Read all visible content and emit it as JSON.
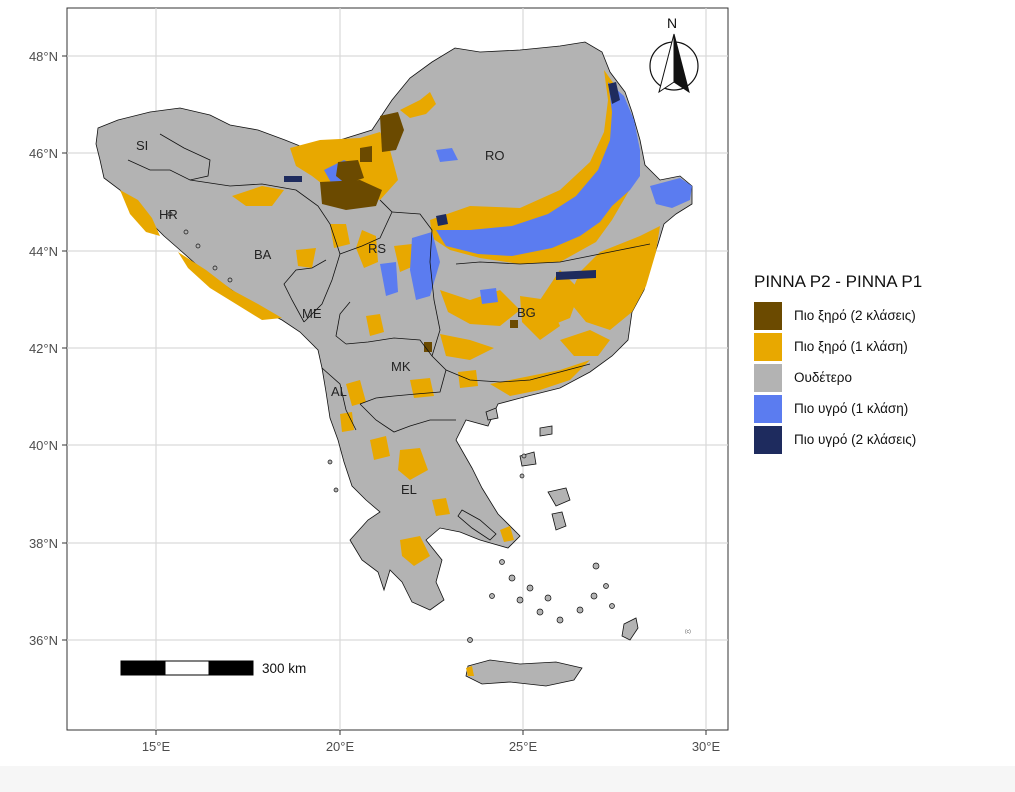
{
  "map": {
    "x_ticks": [
      "15°E",
      "20°E",
      "25°E",
      "30°E"
    ],
    "y_ticks": [
      "48°N",
      "46°N",
      "44°N",
      "42°N",
      "40°N",
      "38°N",
      "36°N"
    ],
    "north_label": "N",
    "scale_label": "300 km",
    "countries": [
      {
        "code": "SI",
        "id": "si"
      },
      {
        "code": "HR",
        "id": "hr"
      },
      {
        "code": "BA",
        "id": "ba"
      },
      {
        "code": "ME",
        "id": "me"
      },
      {
        "code": "RS",
        "id": "rs"
      },
      {
        "code": "RO",
        "id": "ro"
      },
      {
        "code": "BG",
        "id": "bg"
      },
      {
        "code": "MK",
        "id": "mk"
      },
      {
        "code": "AL",
        "id": "al"
      },
      {
        "code": "EL",
        "id": "el"
      }
    ],
    "colors": {
      "drier_2": "#6b4a00",
      "drier_1": "#e8a800",
      "neutral": "#b3b3b3",
      "wetter_1": "#5b7cf0",
      "wetter_2": "#1e2b5e",
      "grid": "#d9d9d9",
      "frame": "#333333"
    }
  },
  "legend": {
    "title": "PINNA P2 - PINNA P1",
    "items": [
      {
        "label": "Πιο ξηρό (2 κλάσεις)",
        "color": "#6b4a00"
      },
      {
        "label": "Πιο ξηρό (1 κλάση)",
        "color": "#e8a800"
      },
      {
        "label": "Ουδέτερο",
        "color": "#b3b3b3"
      },
      {
        "label": "Πιο υγρό (1 κλάση)",
        "color": "#5b7cf0"
      },
      {
        "label": "Πιο υγρό (2 κλάσεις)",
        "color": "#1e2b5e"
      }
    ]
  }
}
